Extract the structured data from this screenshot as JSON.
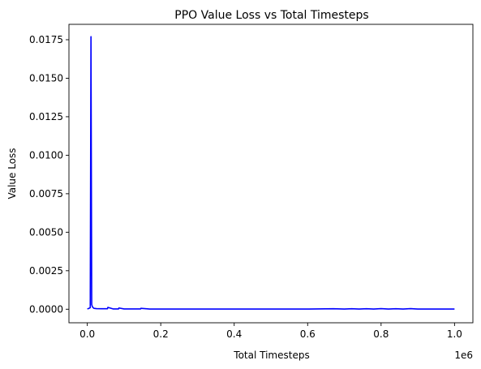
{
  "chart_data": {
    "type": "line",
    "title": "PPO Value Loss vs Total Timesteps",
    "xlabel": "Total Timesteps",
    "ylabel": "Value Loss",
    "x_offset_label": "1e6",
    "xlim": [
      -0.05,
      1.05
    ],
    "ylim": [
      -0.00088,
      0.0185
    ],
    "x_ticks": [
      0.0,
      0.2,
      0.4,
      0.6,
      0.8,
      1.0
    ],
    "x_tick_labels": [
      "0.0",
      "0.2",
      "0.4",
      "0.6",
      "0.8",
      "1.0"
    ],
    "y_ticks": [
      0.0,
      0.0025,
      0.005,
      0.0075,
      0.01,
      0.0125,
      0.015,
      0.0175
    ],
    "y_tick_labels": [
      "0.0000",
      "0.0025",
      "0.0050",
      "0.0075",
      "0.0100",
      "0.0125",
      "0.0150",
      "0.0175"
    ],
    "grid": false,
    "series": [
      {
        "name": "Value Loss",
        "color": "#0000ff",
        "x": [
          0.0,
          0.004,
          0.008,
          0.01,
          0.012,
          0.014,
          0.018,
          0.025,
          0.04,
          0.055,
          0.056,
          0.07,
          0.085,
          0.086,
          0.1,
          0.12,
          0.145,
          0.146,
          0.17,
          0.2,
          0.3,
          0.4,
          0.5,
          0.6,
          0.67,
          0.7,
          0.72,
          0.74,
          0.76,
          0.78,
          0.8,
          0.82,
          0.84,
          0.86,
          0.88,
          0.9,
          0.95,
          1.0
        ],
        "values": [
          2e-05,
          5e-05,
          0.0001,
          0.0177,
          0.0003,
          0.00015,
          6e-05,
          4e-05,
          3e-05,
          3e-05,
          0.00012,
          2e-05,
          2e-05,
          8e-05,
          2e-05,
          2e-05,
          2e-05,
          6e-05,
          1e-05,
          1e-05,
          1e-05,
          1e-05,
          1e-05,
          1e-05,
          3e-05,
          1e-05,
          3e-05,
          1e-05,
          3e-05,
          1e-05,
          4e-05,
          1e-05,
          3e-05,
          1e-05,
          4e-05,
          1e-05,
          1e-05,
          1e-05
        ]
      }
    ]
  }
}
